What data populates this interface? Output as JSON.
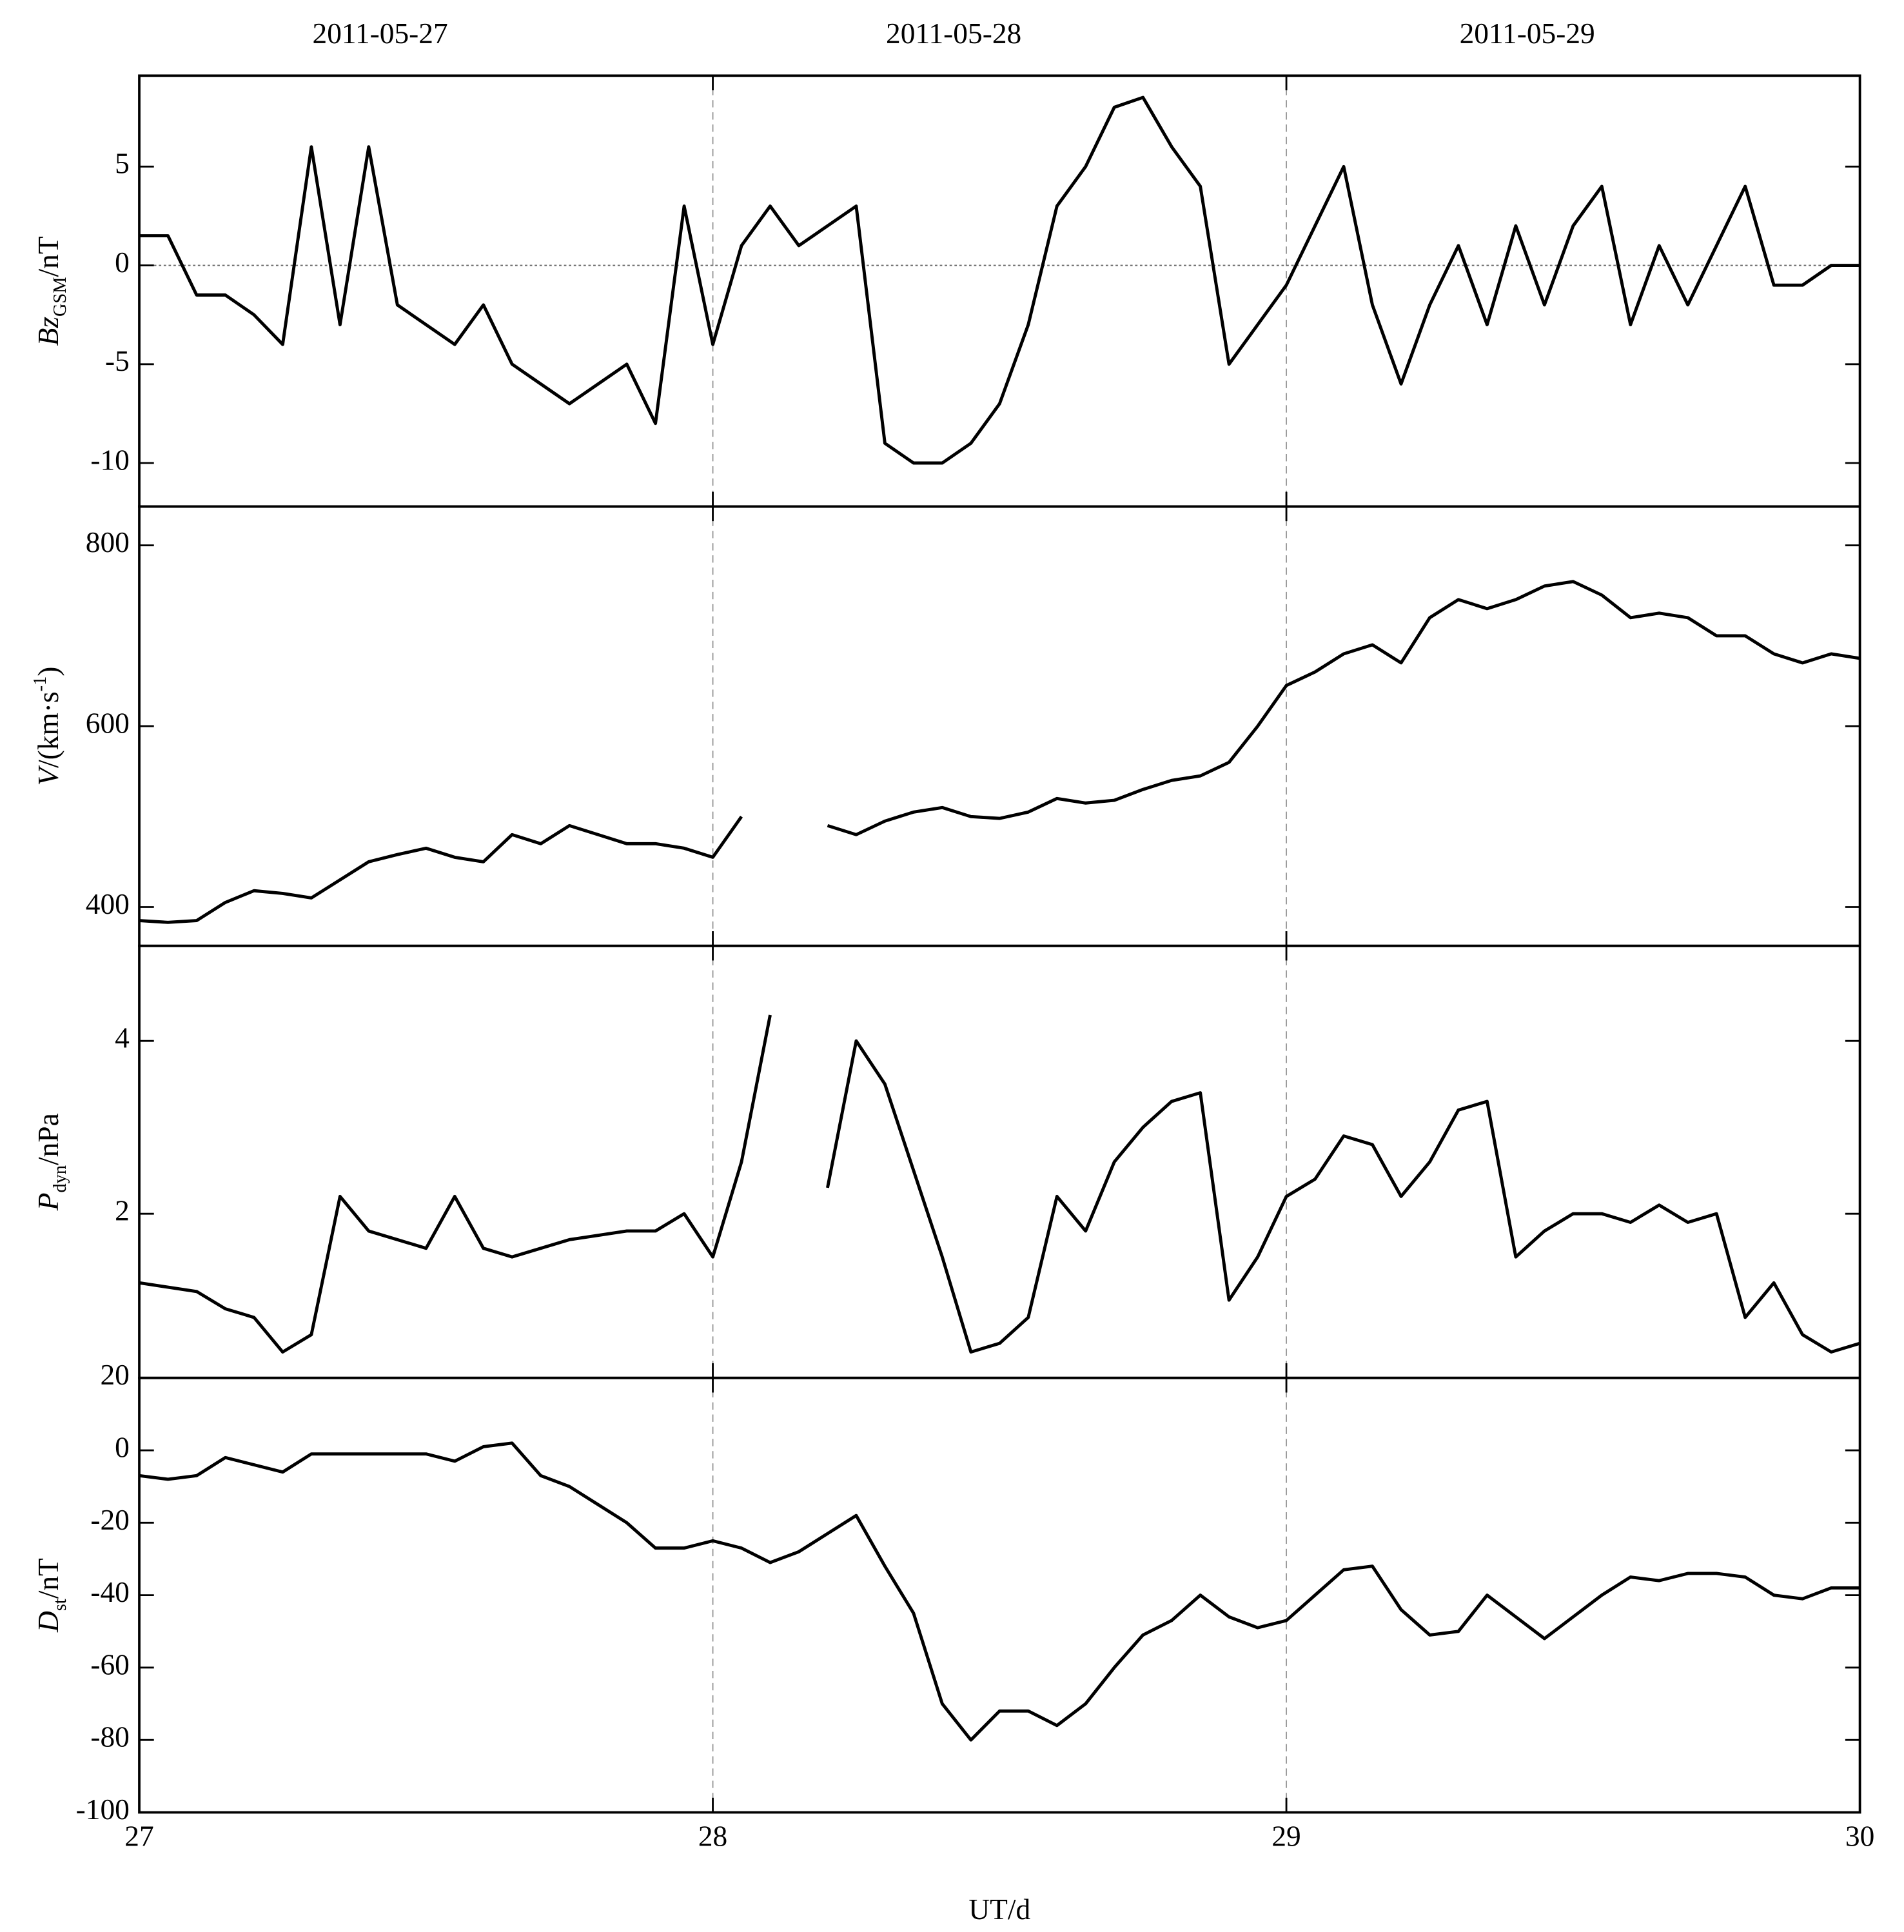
{
  "chart_data": [
    {
      "type": "line",
      "ylabel": [
        "Bz",
        "GSM",
        "/nT"
      ],
      "annotations": [
        "2011-05-27",
        "2011-05-28",
        "2011-05-29"
      ],
      "xlim": [
        27,
        30
      ],
      "ylim": [
        -12.2,
        9.6
      ],
      "yticks": [
        -10,
        -5,
        0,
        5
      ],
      "hline": 0,
      "color": "#000000",
      "x": [
        27,
        27.05,
        27.1,
        27.15,
        27.2,
        27.25,
        27.3,
        27.35,
        27.4,
        27.45,
        27.5,
        27.55,
        27.6,
        27.65,
        27.7,
        27.75,
        27.8,
        27.85,
        27.9,
        27.95,
        28,
        28.05,
        28.1,
        28.15,
        28.2,
        28.25,
        28.3,
        28.35,
        28.4,
        28.45,
        28.5,
        28.55,
        28.6,
        28.65,
        28.7,
        28.75,
        28.8,
        28.85,
        28.9,
        28.95,
        29,
        29.05,
        29.1,
        29.15,
        29.2,
        29.25,
        29.3,
        29.35,
        29.4,
        29.45,
        29.5,
        29.55,
        29.6,
        29.65,
        29.7,
        29.75,
        29.8,
        29.85,
        29.9,
        29.95,
        30
      ],
      "values": [
        1.5,
        1.5,
        -1.5,
        -1.5,
        -2.5,
        -4,
        6,
        -3,
        6,
        -2,
        -3,
        -4,
        -2,
        -5,
        -6,
        -7,
        -6,
        -5,
        -8,
        3,
        -4,
        1,
        3,
        1,
        2,
        3,
        -9,
        -10,
        -10,
        -9,
        -7,
        -3,
        3,
        5,
        8,
        8.5,
        6,
        4,
        -5,
        -3,
        -1,
        2,
        5,
        -2,
        -6,
        -2,
        1,
        -3,
        2,
        -2,
        2,
        4,
        -3,
        1,
        -2,
        1,
        4,
        -1,
        -1,
        0,
        0
      ]
    },
    {
      "type": "line",
      "ylabel": [
        "V",
        "/(km·s",
        "-1",
        ")"
      ],
      "xlim": [
        27,
        30
      ],
      "ylim": [
        357,
        843
      ],
      "yticks": [
        400,
        600,
        800
      ],
      "color": "#000000",
      "x": [
        27,
        27.05,
        27.1,
        27.15,
        27.2,
        27.25,
        27.3,
        27.35,
        27.4,
        27.45,
        27.5,
        27.55,
        27.6,
        27.65,
        27.7,
        27.75,
        27.8,
        27.85,
        27.9,
        27.95,
        28,
        28.05,
        28.1,
        28.15,
        28.2,
        28.25,
        28.3,
        28.35,
        28.4,
        28.45,
        28.5,
        28.55,
        28.6,
        28.65,
        28.7,
        28.75,
        28.8,
        28.85,
        28.9,
        28.95,
        29,
        29.05,
        29.1,
        29.15,
        29.2,
        29.25,
        29.3,
        29.35,
        29.4,
        29.45,
        29.5,
        29.55,
        29.6,
        29.65,
        29.7,
        29.75,
        29.8,
        29.85,
        29.9,
        29.95,
        30
      ],
      "values": [
        385,
        383,
        385,
        405,
        418,
        415,
        410,
        430,
        450,
        458,
        465,
        455,
        450,
        480,
        470,
        490,
        480,
        470,
        470,
        465,
        455,
        500,
        null,
        null,
        490,
        480,
        495,
        505,
        510,
        500,
        498,
        505,
        520,
        515,
        518,
        530,
        540,
        545,
        560,
        600,
        645,
        660,
        680,
        690,
        670,
        720,
        740,
        730,
        740,
        755,
        760,
        745,
        720,
        725,
        720,
        700,
        700,
        680,
        670,
        680,
        675
      ]
    },
    {
      "type": "line",
      "ylabel": [
        "P",
        "dyn",
        "/nPa"
      ],
      "xlim": [
        27,
        30
      ],
      "ylim": [
        0.1,
        5.1
      ],
      "yticks": [
        2,
        4
      ],
      "color": "#000000",
      "x": [
        27,
        27.05,
        27.1,
        27.15,
        27.2,
        27.25,
        27.3,
        27.35,
        27.4,
        27.45,
        27.5,
        27.55,
        27.6,
        27.65,
        27.7,
        27.75,
        27.8,
        27.85,
        27.9,
        27.95,
        28,
        28.05,
        28.1,
        28.15,
        28.2,
        28.25,
        28.3,
        28.35,
        28.4,
        28.45,
        28.5,
        28.55,
        28.6,
        28.65,
        28.7,
        28.75,
        28.8,
        28.85,
        28.9,
        28.95,
        29,
        29.05,
        29.1,
        29.15,
        29.2,
        29.25,
        29.3,
        29.35,
        29.4,
        29.45,
        29.5,
        29.55,
        29.6,
        29.65,
        29.7,
        29.75,
        29.8,
        29.85,
        29.9,
        29.95,
        30
      ],
      "values": [
        1.2,
        1.15,
        1.1,
        0.9,
        0.8,
        0.4,
        0.6,
        2.2,
        1.8,
        1.7,
        1.6,
        2.2,
        1.6,
        1.5,
        1.6,
        1.7,
        1.75,
        1.8,
        1.8,
        2.0,
        1.5,
        2.6,
        4.3,
        null,
        2.3,
        4.0,
        3.5,
        2.5,
        1.5,
        0.4,
        0.5,
        0.8,
        2.2,
        1.8,
        2.6,
        3.0,
        3.3,
        3.4,
        1.0,
        1.5,
        2.2,
        2.4,
        2.9,
        2.8,
        2.2,
        2.6,
        3.2,
        3.3,
        1.5,
        1.8,
        2.0,
        2.0,
        1.9,
        2.1,
        1.9,
        2.0,
        0.8,
        1.2,
        0.6,
        0.4,
        0.5
      ]
    },
    {
      "type": "line",
      "ylabel": [
        "D",
        "st",
        "/nT"
      ],
      "xlabel": "UT/d",
      "xlim": [
        27,
        30
      ],
      "xticks": [
        27,
        28,
        29,
        30
      ],
      "ylim": [
        -100,
        20
      ],
      "yticks": [
        -100,
        -80,
        -60,
        -40,
        -20,
        0,
        20
      ],
      "color": "#000000",
      "x": [
        27,
        27.05,
        27.1,
        27.15,
        27.2,
        27.25,
        27.3,
        27.35,
        27.4,
        27.45,
        27.5,
        27.55,
        27.6,
        27.65,
        27.7,
        27.75,
        27.8,
        27.85,
        27.9,
        27.95,
        28,
        28.05,
        28.1,
        28.15,
        28.2,
        28.25,
        28.3,
        28.35,
        28.4,
        28.45,
        28.5,
        28.55,
        28.6,
        28.65,
        28.7,
        28.75,
        28.8,
        28.85,
        28.9,
        28.95,
        29,
        29.05,
        29.1,
        29.15,
        29.2,
        29.25,
        29.3,
        29.35,
        29.4,
        29.45,
        29.5,
        29.55,
        29.6,
        29.65,
        29.7,
        29.75,
        29.8,
        29.85,
        29.9,
        29.95,
        30
      ],
      "values": [
        -7,
        -8,
        -7,
        -2,
        -4,
        -6,
        -1,
        -1,
        -1,
        -1,
        -1,
        -3,
        1,
        2,
        -7,
        -10,
        -15,
        -20,
        -27,
        -27,
        -25,
        -27,
        -31,
        -28,
        -23,
        -18,
        -32,
        -45,
        -70,
        -80,
        -72,
        -72,
        -76,
        -70,
        -60,
        -51,
        -47,
        -40,
        -46,
        -49,
        -47,
        -40,
        -33,
        -32,
        -44,
        -51,
        -50,
        -40,
        -46,
        -52,
        -46,
        -40,
        -35,
        -36,
        -34,
        -34,
        -35,
        -40,
        -41,
        -38,
        -38
      ]
    }
  ]
}
